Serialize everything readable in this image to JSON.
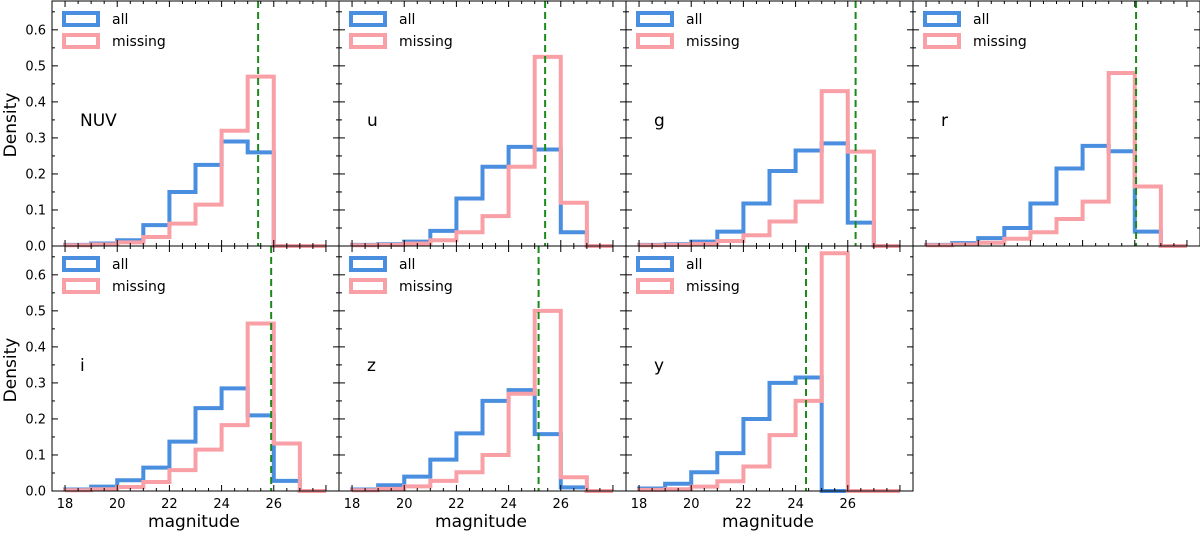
{
  "figure": {
    "ylabel": "Density",
    "xlabel": "magnitude",
    "legend_labels": [
      "all",
      "missing"
    ],
    "colors": {
      "all": "#4a8ee0",
      "missing": "#f99fa6",
      "threshold": "#1a8a1a"
    },
    "x_ticks": [
      18,
      20,
      22,
      24,
      26
    ],
    "y_ticks": [
      0.0,
      0.1,
      0.2,
      0.3,
      0.4,
      0.5,
      0.6
    ],
    "y_tick_labels": [
      "0.0",
      "0.1",
      "0.2",
      "0.3",
      "0.4",
      "0.5",
      "0.6"
    ],
    "x_tick_labels": [
      "18",
      "20",
      "22",
      "24",
      "26"
    ]
  },
  "chart_data": [
    {
      "type": "histogram",
      "band": "NUV",
      "xlim": [
        17.5,
        28.5
      ],
      "ylim": [
        0,
        0.68
      ],
      "bin_edges": [
        18,
        19,
        20,
        21,
        22,
        23,
        24,
        25,
        26,
        27,
        28
      ],
      "series": [
        {
          "name": "all",
          "values": [
            0.003,
            0.007,
            0.016,
            0.058,
            0.15,
            0.225,
            0.29,
            0.26,
            0,
            0
          ]
        },
        {
          "name": "missing",
          "values": [
            0.002,
            0.004,
            0.01,
            0.025,
            0.062,
            0.115,
            0.32,
            0.47,
            0,
            0
          ]
        }
      ],
      "threshold": 25.4,
      "legend_loc": "upper left",
      "grid": false
    },
    {
      "type": "histogram",
      "band": "u",
      "xlim": [
        17.5,
        28.5
      ],
      "ylim": [
        0,
        0.68
      ],
      "bin_edges": [
        18,
        19,
        20,
        21,
        22,
        23,
        24,
        25,
        26,
        27,
        28
      ],
      "series": [
        {
          "name": "all",
          "values": [
            0.003,
            0.005,
            0.012,
            0.042,
            0.132,
            0.22,
            0.275,
            0.268,
            0.038,
            0
          ]
        },
        {
          "name": "missing",
          "values": [
            0.002,
            0.003,
            0.007,
            0.016,
            0.038,
            0.083,
            0.22,
            0.525,
            0.12,
            0
          ]
        }
      ],
      "threshold": 25.4,
      "legend_loc": "upper left",
      "grid": false
    },
    {
      "type": "histogram",
      "band": "g",
      "xlim": [
        17.5,
        28.5
      ],
      "ylim": [
        0,
        0.68
      ],
      "bin_edges": [
        18,
        19,
        20,
        21,
        22,
        23,
        24,
        25,
        26,
        27,
        28
      ],
      "series": [
        {
          "name": "all",
          "values": [
            0.003,
            0.005,
            0.012,
            0.04,
            0.118,
            0.208,
            0.265,
            0.285,
            0.065,
            0
          ]
        },
        {
          "name": "missing",
          "values": [
            0.002,
            0.003,
            0.006,
            0.014,
            0.03,
            0.068,
            0.123,
            0.43,
            0.262,
            0
          ]
        }
      ],
      "threshold": 26.3,
      "legend_loc": "upper left",
      "grid": false
    },
    {
      "type": "histogram",
      "band": "r",
      "xlim": [
        17.5,
        28.5
      ],
      "ylim": [
        0,
        0.68
      ],
      "bin_edges": [
        18,
        19,
        20,
        21,
        22,
        23,
        24,
        25,
        26,
        27,
        28
      ],
      "series": [
        {
          "name": "all",
          "values": [
            0.003,
            0.008,
            0.022,
            0.05,
            0.118,
            0.215,
            0.278,
            0.263,
            0.04,
            0
          ]
        },
        {
          "name": "missing",
          "values": [
            0.002,
            0.004,
            0.009,
            0.02,
            0.038,
            0.075,
            0.123,
            0.48,
            0.165,
            0
          ]
        }
      ],
      "threshold": 26.05,
      "legend_loc": "upper left",
      "grid": false
    },
    {
      "type": "histogram",
      "band": "i",
      "xlim": [
        17.5,
        28.5
      ],
      "ylim": [
        0,
        0.68
      ],
      "bin_edges": [
        18,
        19,
        20,
        21,
        22,
        23,
        24,
        25,
        26,
        27,
        28
      ],
      "series": [
        {
          "name": "all",
          "values": [
            0.004,
            0.012,
            0.03,
            0.065,
            0.137,
            0.23,
            0.285,
            0.21,
            0.028,
            0
          ]
        },
        {
          "name": "missing",
          "values": [
            0.002,
            0.005,
            0.011,
            0.025,
            0.058,
            0.115,
            0.183,
            0.465,
            0.132,
            0
          ]
        }
      ],
      "threshold": 25.9,
      "legend_loc": "upper left",
      "grid": false
    },
    {
      "type": "histogram",
      "band": "z",
      "xlim": [
        17.5,
        28.5
      ],
      "ylim": [
        0,
        0.68
      ],
      "bin_edges": [
        18,
        19,
        20,
        21,
        22,
        23,
        24,
        25,
        26,
        27,
        28
      ],
      "series": [
        {
          "name": "all",
          "values": [
            0.004,
            0.016,
            0.04,
            0.087,
            0.16,
            0.25,
            0.28,
            0.158,
            0.01,
            0
          ]
        },
        {
          "name": "missing",
          "values": [
            0.002,
            0.006,
            0.013,
            0.028,
            0.052,
            0.1,
            0.27,
            0.5,
            0.038,
            0
          ]
        }
      ],
      "threshold": 25.15,
      "legend_loc": "upper left",
      "grid": false
    },
    {
      "type": "histogram",
      "band": "y",
      "xlim": [
        17.5,
        28.5
      ],
      "ylim": [
        0,
        0.68
      ],
      "bin_edges": [
        18,
        19,
        20,
        21,
        22,
        23,
        24,
        25,
        26,
        27,
        28
      ],
      "series": [
        {
          "name": "all",
          "values": [
            0.007,
            0.02,
            0.052,
            0.105,
            0.2,
            0.3,
            0.315,
            0,
            0,
            0
          ]
        },
        {
          "name": "missing",
          "values": [
            0.003,
            0.005,
            0.012,
            0.027,
            0.068,
            0.155,
            0.25,
            0.66,
            0,
            0
          ]
        }
      ],
      "threshold": 24.4,
      "legend_loc": "upper left",
      "grid": false
    }
  ]
}
